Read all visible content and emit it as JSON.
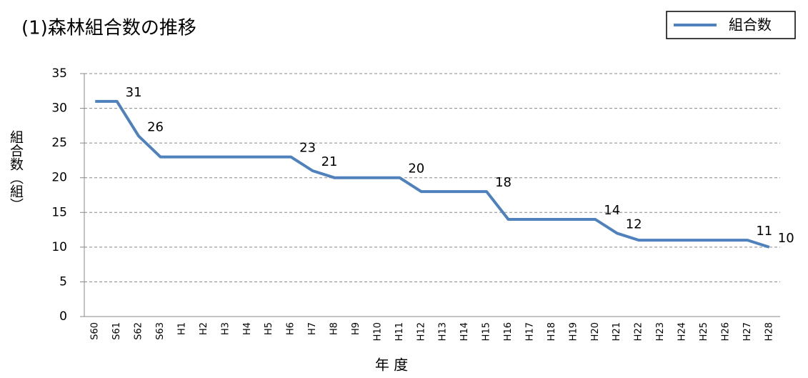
{
  "chart_data": {
    "type": "line",
    "title": "(1)森林組合数の推移",
    "x_label": "年 度",
    "y_label": "組合数（組）",
    "categories": [
      "S60",
      "S61",
      "S62",
      "S63",
      "H1",
      "H2",
      "H3",
      "H4",
      "H5",
      "H6",
      "H7",
      "H8",
      "H9",
      "H10",
      "H11",
      "H12",
      "H13",
      "H14",
      "H15",
      "H16",
      "H17",
      "H18",
      "H19",
      "H20",
      "H21",
      "H22",
      "H23",
      "H24",
      "H25",
      "H26",
      "H27",
      "H28"
    ],
    "series": [
      {
        "name": "組合数",
        "color": "#4f81bd",
        "values": [
          31,
          31,
          26,
          23,
          23,
          23,
          23,
          23,
          23,
          23,
          21,
          20,
          20,
          20,
          20,
          18,
          18,
          18,
          18,
          14,
          14,
          14,
          14,
          14,
          12,
          11,
          11,
          11,
          11,
          11,
          11,
          10
        ],
        "value_labels": [
          null,
          "31",
          "26",
          null,
          null,
          null,
          null,
          null,
          null,
          "23",
          "21",
          null,
          null,
          null,
          "20",
          null,
          null,
          null,
          "18",
          null,
          null,
          null,
          null,
          "14",
          "12",
          null,
          null,
          null,
          null,
          null,
          "11",
          "10"
        ]
      }
    ],
    "ylim": [
      0,
      35
    ],
    "yticks": [
      0,
      5,
      10,
      15,
      20,
      25,
      30,
      35
    ],
    "grid": true,
    "legend": "top-right"
  }
}
